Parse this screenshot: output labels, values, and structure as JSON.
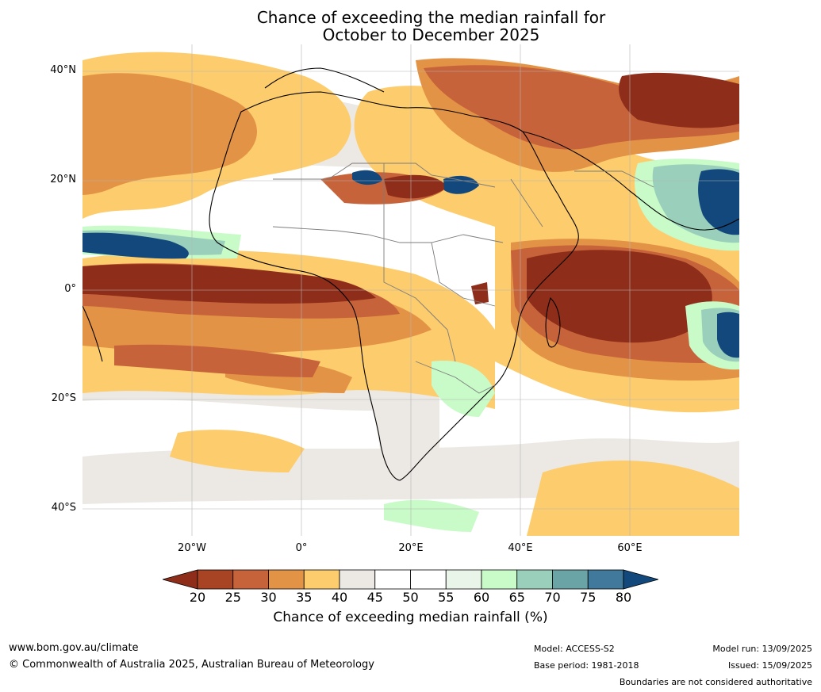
{
  "title_line1": "Chance of exceeding the median rainfall for",
  "title_line2": "October to December 2025",
  "lat_labels": [
    "40°N",
    "20°N",
    "0°",
    "20°S",
    "40°S"
  ],
  "lon_labels": [
    "20°W",
    "0°",
    "20°E",
    "40°E",
    "60°E"
  ],
  "colorbar": {
    "ticks": [
      "20",
      "25",
      "30",
      "35",
      "40",
      "45",
      "50",
      "55",
      "60",
      "65",
      "70",
      "75",
      "80"
    ],
    "title": "Chance of exceeding median rainfall (%)",
    "colors": [
      "#8e2e1a",
      "#a84424",
      "#c7633a",
      "#e39346",
      "#fdcc6c",
      "#ece9e5",
      "#ffffff",
      "#ffffff",
      "#e8f5e8",
      "#c8fbc8",
      "#9ad0bb",
      "#6aa4a6",
      "#40799b",
      "#12487c"
    ]
  },
  "footer": {
    "website": "www.bom.gov.au/climate",
    "copyright": "© Commonwealth of Australia 2025, Australian Bureau of Meteorology",
    "model": "Model: ACCESS-S2",
    "base_period": "Base period: 1981-2018",
    "model_run": "Model run: 13/09/2025",
    "issued": "Issued: 15/09/2025",
    "disclaimer": "Boundaries are not considered authoritative"
  }
}
